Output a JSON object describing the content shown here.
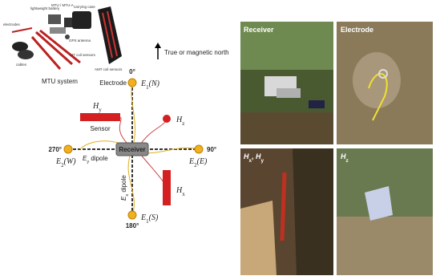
{
  "equipment": {
    "labels": [
      "lightweight battery",
      "MTU / MTU-A",
      "carrying case",
      "electrodes",
      "GPS antenna",
      "HT coil sensors",
      "cables",
      "AMT coil sensors"
    ],
    "caption": "MTU system"
  },
  "north_label": "True or magnetic north",
  "diagram": {
    "angles": [
      "0°",
      "90°",
      "180°",
      "270°"
    ],
    "electrode_label": "Electrode",
    "sensor_label": "Sensor",
    "receiver_label": "Receiver",
    "electrodes": [
      [
        {
          "t": "E",
          "s": "i"
        },
        {
          "t": "1",
          "s": "sub"
        },
        {
          "t": "(N)",
          "s": "i"
        }
      ],
      [
        {
          "t": "E",
          "s": "i"
        },
        {
          "t": "2",
          "s": "sub"
        },
        {
          "t": "(E)",
          "s": "i"
        }
      ],
      [
        {
          "t": "E",
          "s": "i"
        },
        {
          "t": "1",
          "s": "sub"
        },
        {
          "t": "(S)",
          "s": "i"
        }
      ],
      [
        {
          "t": "E",
          "s": "i"
        },
        {
          "t": "2",
          "s": "sub"
        },
        {
          "t": "(W)",
          "s": "i"
        }
      ]
    ],
    "dipoles": [
      [
        {
          "t": "E",
          "s": "i"
        },
        {
          "t": "y",
          "s": "sub"
        },
        {
          "t": " dipole",
          "s": "n"
        }
      ],
      [
        {
          "t": "E",
          "s": "i"
        },
        {
          "t": "x",
          "s": "sub"
        },
        {
          "t": " dipole",
          "s": "n"
        }
      ]
    ],
    "sensors": [
      [
        {
          "t": "H",
          "s": "i"
        },
        {
          "t": "y",
          "s": "sub"
        }
      ],
      [
        {
          "t": "H",
          "s": "i"
        },
        {
          "t": "z",
          "s": "sub"
        }
      ],
      [
        {
          "t": "H",
          "s": "i"
        },
        {
          "t": "x",
          "s": "sub"
        }
      ]
    ]
  },
  "photos": [
    [
      {
        "t": "Receiver",
        "s": "n"
      }
    ],
    [
      {
        "t": "Electrode",
        "s": "n"
      }
    ],
    [
      {
        "t": "H",
        "s": "i"
      },
      {
        "t": "x",
        "s": "sub"
      },
      {
        "t": ", ",
        "s": "n"
      },
      {
        "t": "H",
        "s": "i"
      },
      {
        "t": "y",
        "s": "sub"
      }
    ],
    [
      {
        "t": "H",
        "s": "i"
      },
      {
        "t": "z",
        "s": "sub"
      }
    ]
  ]
}
